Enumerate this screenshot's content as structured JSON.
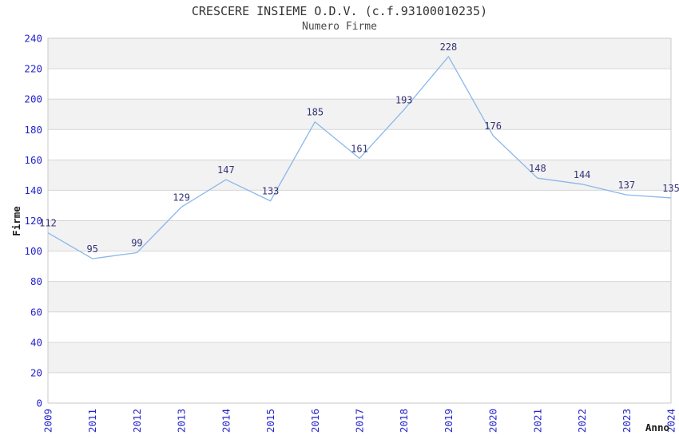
{
  "header": {
    "title": "CRESCERE INSIEME O.D.V. (c.f.93100010235)",
    "subtitle": "Numero Firme"
  },
  "chart_data": {
    "type": "line",
    "title": "CRESCERE INSIEME O.D.V. (c.f.93100010235)",
    "subtitle": "Numero Firme",
    "categories": [
      "2009",
      "2011",
      "2012",
      "2013",
      "2014",
      "2015",
      "2016",
      "2017",
      "2018",
      "2019",
      "2020",
      "2021",
      "2022",
      "2023",
      "2024"
    ],
    "values": [
      112,
      95,
      99,
      129,
      147,
      133,
      185,
      161,
      193,
      228,
      176,
      148,
      144,
      137,
      135
    ],
    "xlabel": "Anno",
    "ylabel": "Firme",
    "ylim": [
      0,
      240
    ],
    "ytick_step": 20,
    "yticks": [
      0,
      20,
      40,
      60,
      80,
      100,
      120,
      140,
      160,
      180,
      200,
      220,
      240
    ],
    "grid": true,
    "legend": "none",
    "band_fill_alternating": true,
    "colors": {
      "line": "#8ab8ea",
      "tick_label": "#2424cc",
      "data_label": "#333377",
      "band": "#f2f2f2",
      "band_alt": "#ffffff",
      "gridline": "#d6d6d6",
      "border": "#c9c9c9",
      "title": "#333333",
      "axis_title": "#1a1a1a",
      "background": "#ffffff"
    }
  }
}
